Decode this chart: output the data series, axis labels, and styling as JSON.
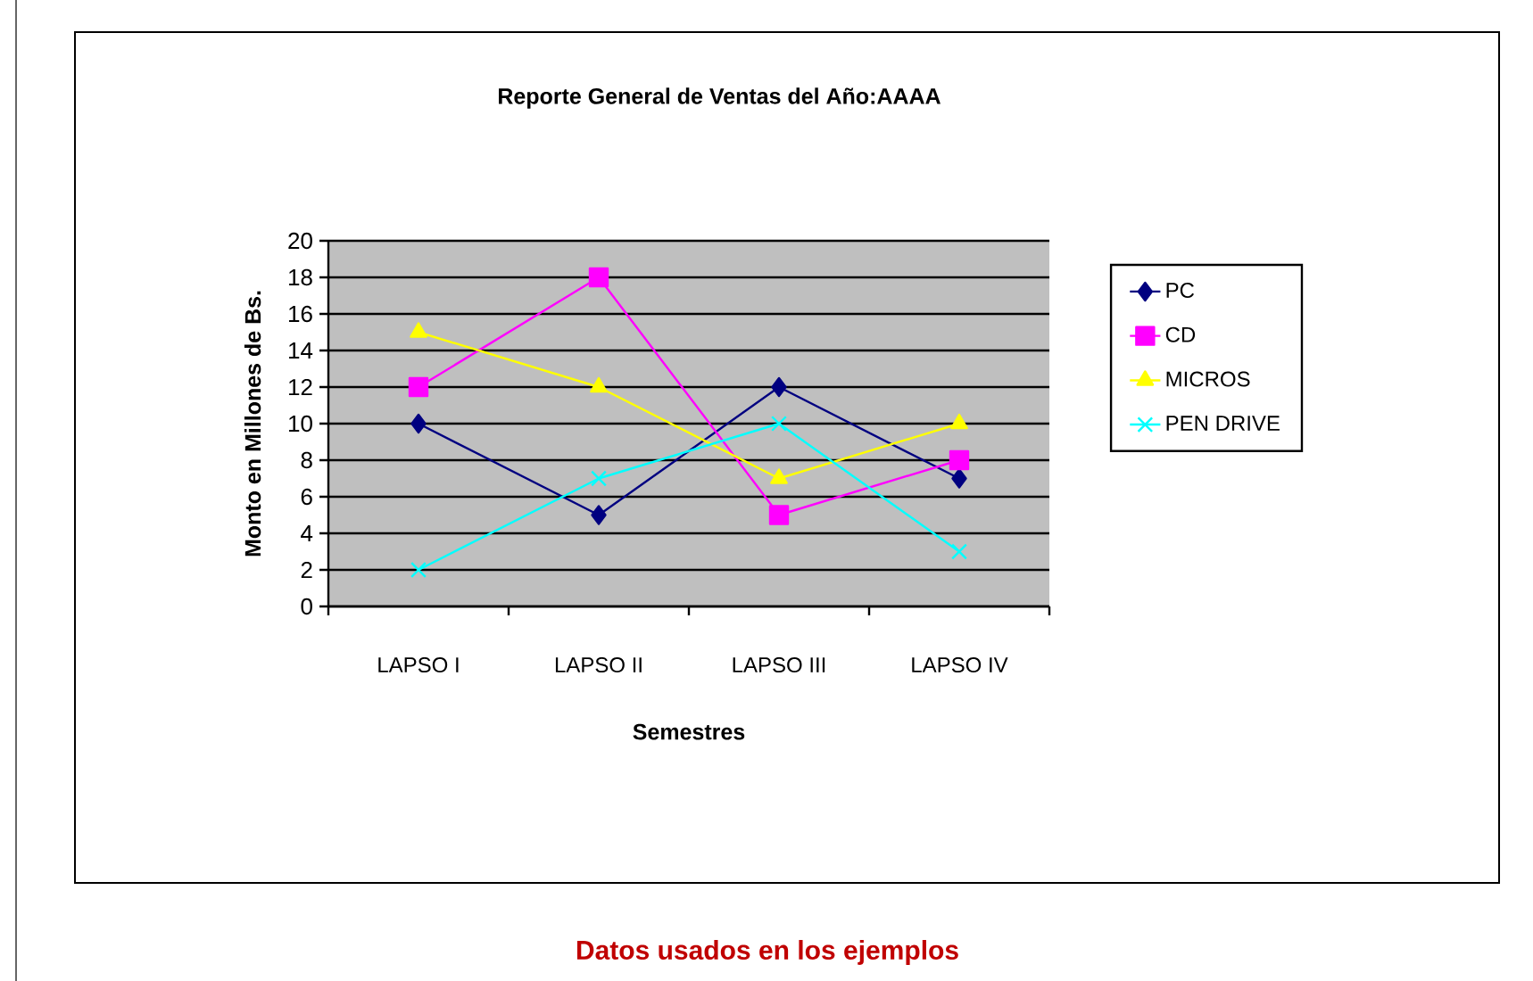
{
  "chart_data": {
    "type": "line",
    "title": "Reporte General de Ventas del Año:AAAA",
    "xlabel": "Semestres",
    "ylabel": "Monto en Millones de Bs.",
    "categories": [
      "LAPSO I",
      "LAPSO II",
      "LAPSO III",
      "LAPSO IV"
    ],
    "series": [
      {
        "name": "PC",
        "color": "#000080",
        "marker": "diamond",
        "values": [
          10,
          5,
          12,
          7
        ]
      },
      {
        "name": "CD",
        "color": "#ff00ff",
        "marker": "square",
        "values": [
          12,
          18,
          5,
          8
        ]
      },
      {
        "name": "MICROS",
        "color": "#ffff00",
        "marker": "triangle",
        "values": [
          15,
          12,
          7,
          10
        ]
      },
      {
        "name": "PEN DRIVE",
        "color": "#00ffff",
        "marker": "cross",
        "values": [
          2,
          7,
          10,
          3
        ]
      }
    ],
    "ylim": [
      0,
      20
    ],
    "yticks": [
      0,
      2,
      4,
      6,
      8,
      10,
      12,
      14,
      16,
      18,
      20
    ],
    "grid": "y",
    "legend": "right",
    "line_style": "solid",
    "annotations": [
      "Datos usados en los ejemplos"
    ]
  }
}
